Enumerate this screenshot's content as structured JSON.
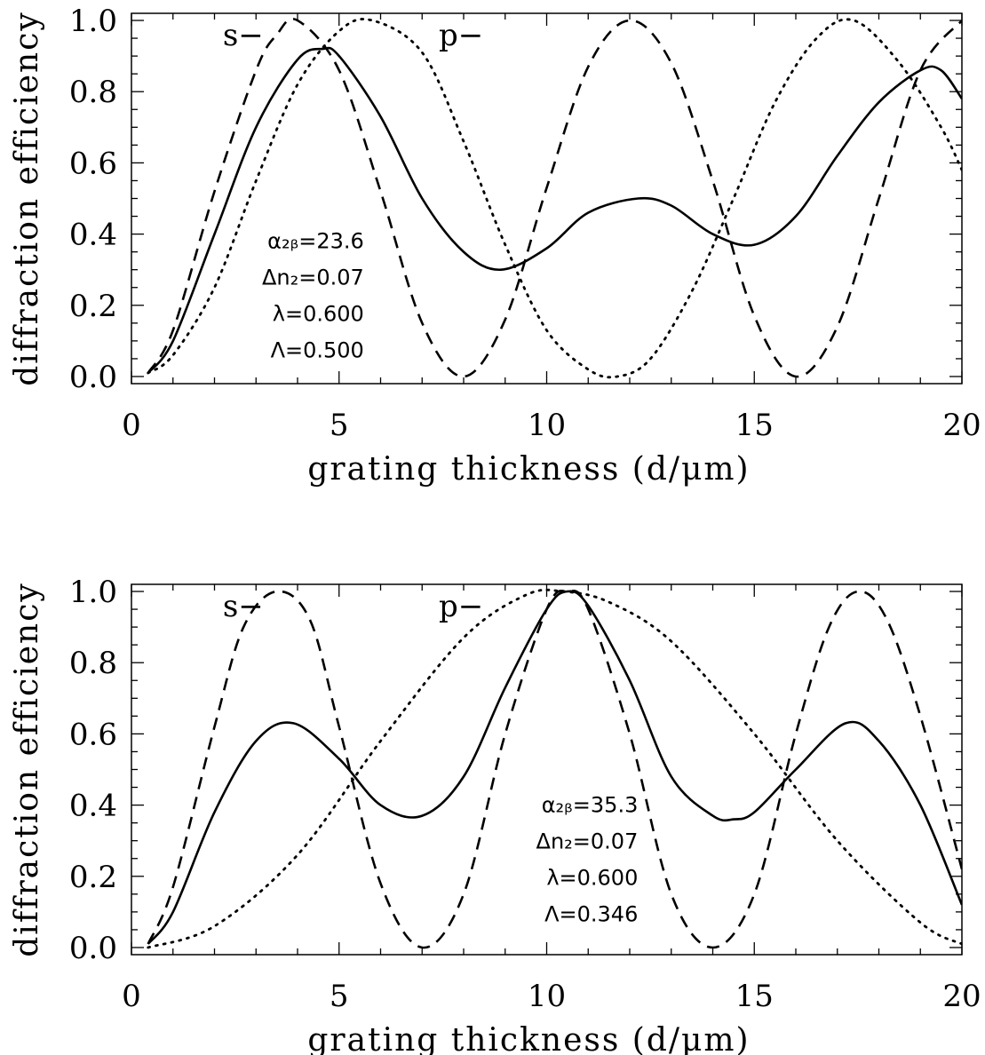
{
  "chart_data": [
    {
      "type": "line",
      "xlabel": "grating thickness (d/μm)",
      "ylabel": "diffraction efficiency",
      "xlim": [
        0,
        20
      ],
      "ylim": [
        -0.02,
        1.02
      ],
      "xticks": [
        0,
        5,
        10,
        15,
        20
      ],
      "xtick_labels": [
        "0",
        "5",
        "10",
        "15",
        "20"
      ],
      "yticks": [
        0.0,
        0.2,
        0.4,
        0.6,
        0.8,
        1.0
      ],
      "ytick_labels": [
        "0.0",
        "0.2",
        "0.4",
        "0.6",
        "0.8",
        "1.0"
      ],
      "grid": false,
      "legend_text": [
        {
          "text": "s−",
          "x": 2.2,
          "y": 0.95
        },
        {
          "text": "p−",
          "x": 7.4,
          "y": 0.95
        }
      ],
      "annotations": [
        "α₂ᵦ=23.6",
        "Δn₂=0.07",
        "λ=0.600",
        "Λ=0.500"
      ],
      "series": [
        {
          "style": "dashed",
          "x": [
            0.4,
            1,
            2,
            3,
            3.5,
            4.0,
            5,
            6,
            7,
            8.0,
            9,
            10,
            11,
            12.0,
            13,
            14,
            15,
            16.0,
            17,
            18,
            19,
            20
          ],
          "y": [
            0.01,
            0.13,
            0.52,
            0.86,
            0.96,
            1.0,
            0.86,
            0.52,
            0.15,
            0.0,
            0.16,
            0.53,
            0.87,
            1.0,
            0.88,
            0.55,
            0.17,
            0.0,
            0.14,
            0.5,
            0.86,
            1.0
          ]
        },
        {
          "style": "solid",
          "x": [
            0.4,
            1,
            2,
            3,
            4,
            4.6,
            5,
            6,
            7,
            8,
            8.9,
            10,
            11,
            12.2,
            13,
            14,
            15,
            16,
            17,
            18,
            19,
            19.5,
            20
          ],
          "y": [
            0.01,
            0.1,
            0.4,
            0.7,
            0.89,
            0.92,
            0.9,
            0.73,
            0.5,
            0.35,
            0.3,
            0.36,
            0.46,
            0.5,
            0.48,
            0.4,
            0.37,
            0.45,
            0.62,
            0.77,
            0.86,
            0.86,
            0.78
          ]
        },
        {
          "style": "dotted",
          "x": [
            0.4,
            1,
            2,
            3,
            4,
            5,
            5.8,
            7,
            8,
            9,
            10,
            11,
            11.7,
            12.5,
            13.5,
            14.5,
            15.5,
            16.5,
            17.4,
            18.5,
            19.5,
            20
          ],
          "y": [
            0.01,
            0.06,
            0.25,
            0.55,
            0.82,
            0.97,
            1.0,
            0.91,
            0.66,
            0.37,
            0.13,
            0.02,
            0.0,
            0.05,
            0.24,
            0.5,
            0.77,
            0.95,
            1.0,
            0.88,
            0.7,
            0.58
          ]
        }
      ]
    },
    {
      "type": "line",
      "xlabel": "grating thickness (d/μm)",
      "ylabel": "diffraction efficiency",
      "xlim": [
        0,
        20
      ],
      "ylim": [
        -0.02,
        1.02
      ],
      "xticks": [
        0,
        5,
        10,
        15,
        20
      ],
      "xtick_labels": [
        "0",
        "5",
        "10",
        "15",
        "20"
      ],
      "yticks": [
        0.0,
        0.2,
        0.4,
        0.6,
        0.8,
        1.0
      ],
      "ytick_labels": [
        "0.0",
        "0.2",
        "0.4",
        "0.6",
        "0.8",
        "1.0"
      ],
      "grid": false,
      "legend_text": [
        {
          "text": "s−",
          "x": 2.2,
          "y": 0.95
        },
        {
          "text": "p−",
          "x": 7.4,
          "y": 0.95
        }
      ],
      "annotations": [
        "α₂ᵦ=35.3",
        "Δn₂=0.07",
        "λ=0.600",
        "Λ=0.346"
      ],
      "series": [
        {
          "style": "dashed",
          "x": [
            0.4,
            1,
            2,
            2.7,
            3.5,
            4.3,
            5,
            6,
            7.0,
            8,
            9,
            10,
            10.5,
            11,
            12,
            13,
            14.0,
            15,
            16,
            16.8,
            17.5,
            18.2,
            19,
            20
          ],
          "y": [
            0.01,
            0.17,
            0.62,
            0.9,
            1.0,
            0.92,
            0.62,
            0.18,
            0.0,
            0.15,
            0.6,
            0.95,
            1.0,
            0.95,
            0.6,
            0.15,
            0.0,
            0.15,
            0.6,
            0.9,
            1.0,
            0.92,
            0.65,
            0.22
          ]
        },
        {
          "style": "solid",
          "x": [
            0.4,
            1,
            2,
            3,
            3.9,
            5,
            6,
            7,
            8,
            9,
            10,
            10.5,
            11,
            12,
            13,
            14,
            14.5,
            15,
            16,
            17.2,
            18,
            19,
            20
          ],
          "y": [
            0.01,
            0.1,
            0.38,
            0.58,
            0.63,
            0.53,
            0.4,
            0.37,
            0.48,
            0.73,
            0.95,
            1.0,
            0.96,
            0.75,
            0.48,
            0.37,
            0.36,
            0.38,
            0.5,
            0.63,
            0.58,
            0.4,
            0.12
          ]
        },
        {
          "style": "dotted",
          "x": [
            0.4,
            2,
            4,
            6,
            8,
            9.5,
            10.4,
            11.5,
            13,
            15,
            17,
            19,
            20
          ],
          "y": [
            0.0,
            0.06,
            0.26,
            0.58,
            0.87,
            0.99,
            1.0,
            0.97,
            0.86,
            0.6,
            0.3,
            0.07,
            0.01
          ]
        }
      ]
    }
  ]
}
